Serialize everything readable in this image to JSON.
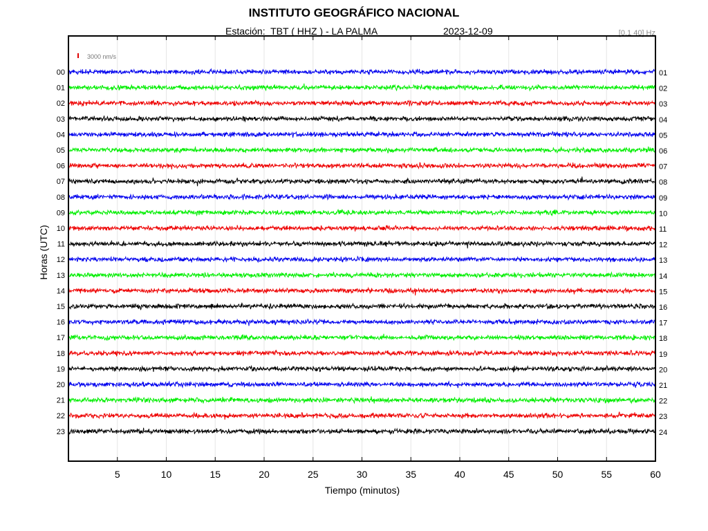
{
  "header": {
    "title": "INSTITUTO GEOGRÁFICO NACIONAL",
    "station": "Estación:  TBT ( HHZ ) - LA PALMA",
    "date": "2023-12-09",
    "filter": "[0.1 40] Hz"
  },
  "chart_data": {
    "type": "line",
    "title": "INSTITUTO GEOGRÁFICO NACIONAL",
    "xlabel": "Tiempo (minutos)",
    "ylabel": "Horas (UTC)",
    "xlim": [
      0,
      60
    ],
    "x_ticks": [
      5,
      10,
      15,
      20,
      25,
      30,
      35,
      40,
      45,
      50,
      55,
      60
    ],
    "scale_label": "3000 nm/s",
    "scale_color": "#e00000",
    "grid": true,
    "left_labels": [
      "00",
      "01",
      "02",
      "03",
      "04",
      "05",
      "06",
      "07",
      "08",
      "09",
      "10",
      "11",
      "12",
      "13",
      "14",
      "15",
      "16",
      "17",
      "18",
      "19",
      "20",
      "21",
      "22",
      "23"
    ],
    "right_labels": [
      "01",
      "02",
      "03",
      "04",
      "05",
      "06",
      "07",
      "08",
      "09",
      "10",
      "11",
      "12",
      "13",
      "14",
      "15",
      "16",
      "17",
      "18",
      "19",
      "20",
      "21",
      "22",
      "23",
      "24"
    ],
    "trace_colors": [
      "#0000ee",
      "#00ee00",
      "#ee0000",
      "#000000"
    ],
    "trace_count": 24
  }
}
